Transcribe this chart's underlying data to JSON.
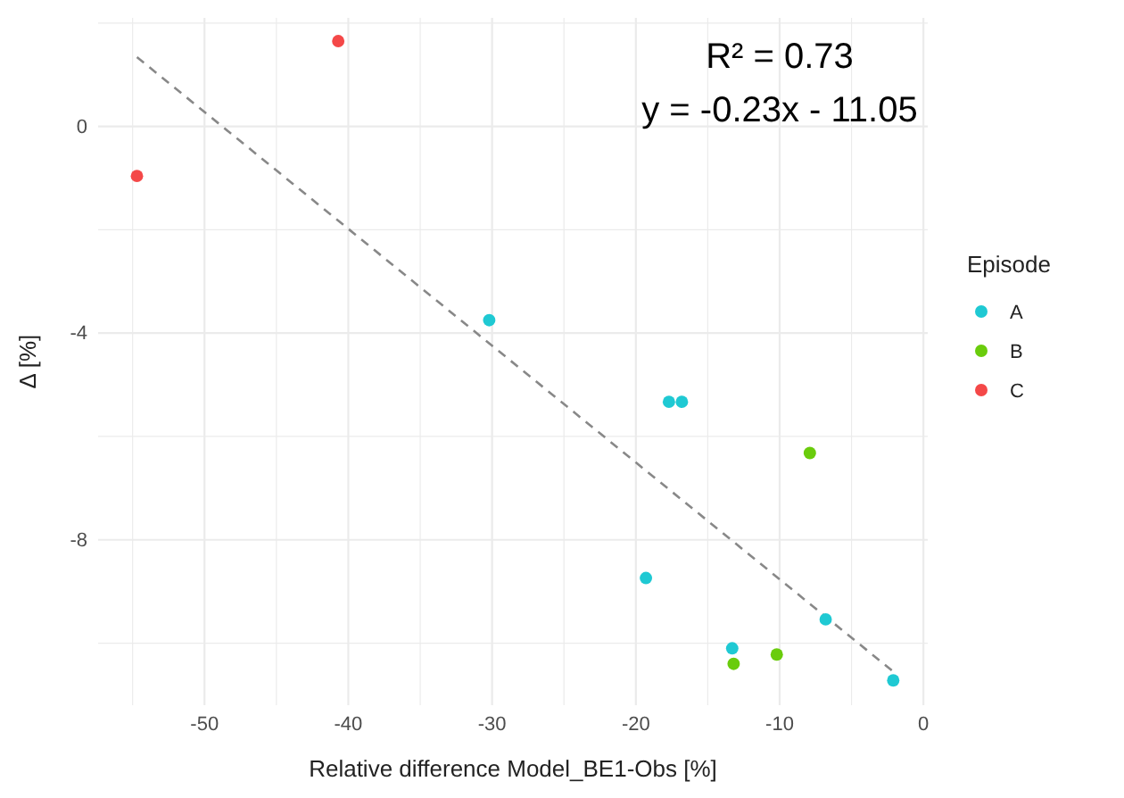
{
  "chart_data": {
    "type": "scatter",
    "xlabel": "Relative difference Model_BE1-Obs [%]",
    "ylabel": "Δ [%]",
    "legend_title": "Episode",
    "legend": "right",
    "grid": true,
    "marker": "circle",
    "xlim": [
      -57.4,
      0.3
    ],
    "ylim": [
      -11.2,
      2.1
    ],
    "xticks": [
      {
        "value": -55,
        "label": null
      },
      -50,
      {
        "value": -45,
        "label": null
      },
      -40,
      {
        "value": -35,
        "label": null
      },
      -30,
      {
        "value": -25,
        "label": null
      },
      -20,
      {
        "value": -15,
        "label": null
      },
      -10,
      {
        "value": -5,
        "label": null
      },
      0
    ],
    "yticks": [
      {
        "value": -10,
        "label": null
      },
      -8,
      {
        "value": -6,
        "label": null
      },
      -4,
      {
        "value": -2,
        "label": null
      },
      0,
      {
        "value": 2,
        "label": null
      }
    ],
    "annotations": [
      "R² = 0.73",
      "y = -0.23x - 11.05"
    ],
    "series": [
      {
        "type": "line",
        "color": "#888888",
        "line_style": "dashed",
        "marker": "none",
        "x": [
          -54.7,
          -2.1
        ],
        "values": [
          1.34,
          -10.55
        ]
      },
      {
        "name": "A",
        "color": "#1fc9d3",
        "x": [
          -30.2,
          -17.7,
          -16.8,
          -19.3,
          -13.3,
          -6.8,
          -2.1
        ],
        "values": [
          -3.75,
          -5.33,
          -5.33,
          -8.74,
          -10.1,
          -9.54,
          -10.72
        ]
      },
      {
        "name": "B",
        "color": "#6acc0c",
        "x": [
          -7.9,
          -13.2,
          -10.2
        ],
        "values": [
          -6.32,
          -10.4,
          -10.22
        ]
      },
      {
        "name": "C",
        "color": "#f44848",
        "x": [
          -54.7,
          -40.7
        ],
        "values": [
          -0.96,
          1.65
        ]
      }
    ]
  }
}
